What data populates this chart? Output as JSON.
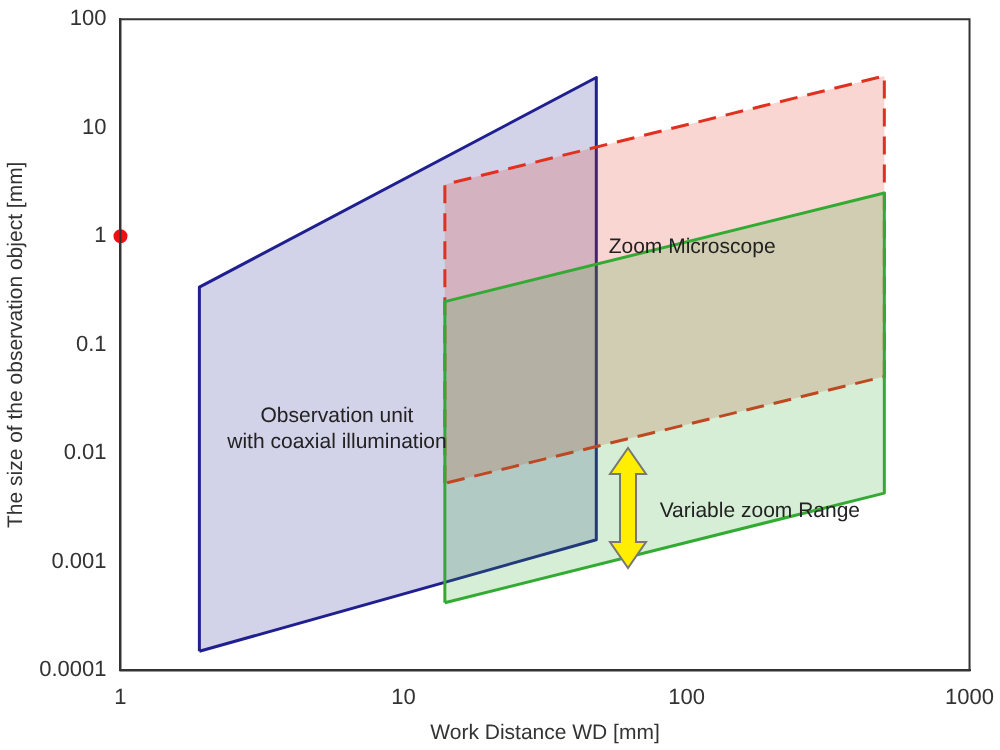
{
  "chart_data": {
    "type": "area",
    "xlabel": "Work Distance WD [mm]",
    "ylabel": "The size of the observation object [mm]",
    "log": "xy",
    "xlim": [
      1,
      1000
    ],
    "ylim": [
      0.0001,
      100
    ],
    "xticks": [
      1,
      10,
      100,
      1000
    ],
    "yticks": [
      0.0001,
      0.001,
      0.01,
      0.1,
      1,
      10,
      100
    ],
    "grid": false,
    "legend": false,
    "series": [
      {
        "color": "#33aa33",
        "x": [
          14,
          14,
          500,
          500,
          14
        ],
        "values": [
          0.00042,
          0.25,
          2.5,
          0.0043,
          0.00042
        ]
      },
      {
        "color": "#e0301e",
        "line_style": "dashed",
        "x": [
          14,
          14,
          500,
          500,
          14
        ],
        "values": [
          0.0053,
          3,
          30,
          0.051,
          0.0053
        ]
      },
      {
        "color": "#1f1f8f",
        "x": [
          1.9,
          1.9,
          48,
          48,
          1.9
        ],
        "values": [
          0.00015,
          0.34,
          29,
          0.0016,
          0.00015
        ]
      },
      {
        "type": "scatter",
        "color": "#ee1111",
        "marker": "circle",
        "x": [
          1
        ],
        "values": [
          1
        ]
      }
    ],
    "annotations": [
      "Observation unit\nwith coaxial illumination",
      "Zoom Microscope",
      "Variable zoom Range"
    ]
  }
}
